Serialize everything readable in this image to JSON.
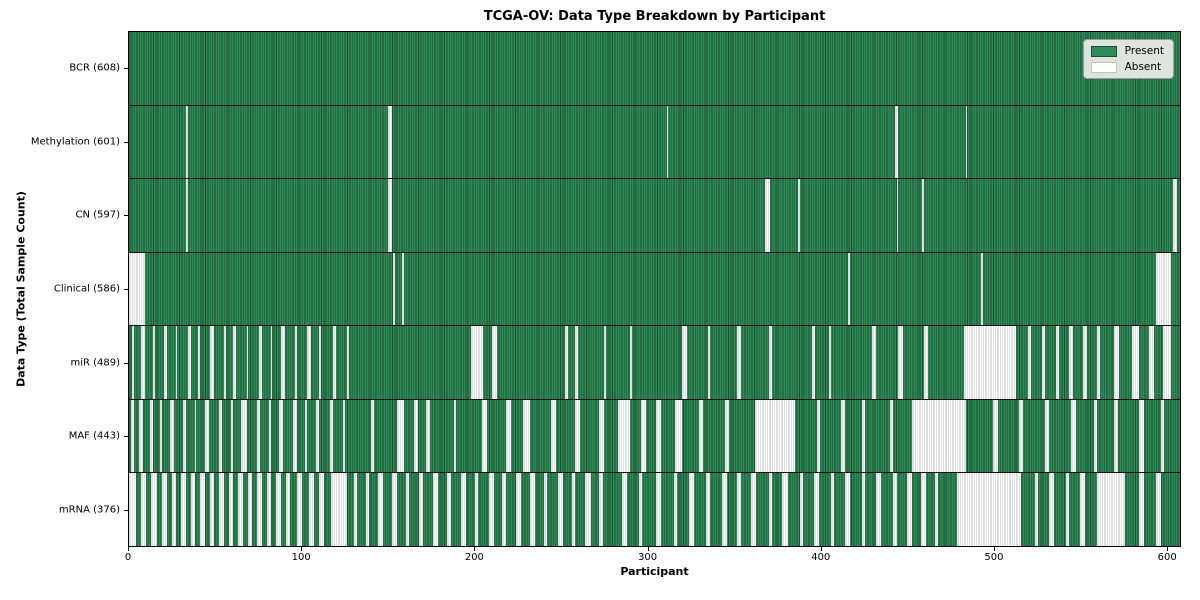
{
  "chart_data": {
    "type": "heatmap",
    "title": "TCGA-OV: Data Type Breakdown by Participant",
    "xlabel": "Participant",
    "ylabel": "Data Type (Total Sample Count)",
    "legend": [
      "Present",
      "Absent"
    ],
    "legend_position": "upper right",
    "grid": false,
    "n_participants": 608,
    "x_range": [
      0,
      608
    ],
    "x_ticks": [
      0,
      100,
      200,
      300,
      400,
      500,
      600
    ],
    "rows": [
      {
        "label": "BCR (608)",
        "present_count": 608,
        "absent_count": 0,
        "absent_ranges": []
      },
      {
        "label": "Methylation (601)",
        "present_count": 601,
        "absent_count": 7,
        "absent_ranges": [
          [
            33,
            33
          ],
          [
            150,
            151
          ],
          [
            311,
            311
          ],
          [
            443,
            444
          ],
          [
            484,
            484
          ]
        ]
      },
      {
        "label": "CN (597)",
        "present_count": 597,
        "absent_count": 11,
        "absent_ranges": [
          [
            33,
            33
          ],
          [
            150,
            151
          ],
          [
            368,
            370
          ],
          [
            387,
            387
          ],
          [
            444,
            444
          ],
          [
            459,
            459
          ],
          [
            604,
            605
          ]
        ]
      },
      {
        "label": "Clinical (586)",
        "present_count": 586,
        "absent_count": 22,
        "absent_ranges": [
          [
            0,
            8
          ],
          [
            153,
            153
          ],
          [
            158,
            158
          ],
          [
            416,
            416
          ],
          [
            493,
            493
          ],
          [
            594,
            602
          ]
        ]
      },
      {
        "label": "miR (489)",
        "present_count": 489,
        "absent_count": 119,
        "absent_ranges": [
          [
            2,
            2
          ],
          [
            7,
            8
          ],
          [
            14,
            14
          ],
          [
            20,
            21
          ],
          [
            27,
            27
          ],
          [
            34,
            35
          ],
          [
            40,
            40
          ],
          [
            47,
            48
          ],
          [
            55,
            55
          ],
          [
            60,
            61
          ],
          [
            68,
            68
          ],
          [
            75,
            76
          ],
          [
            82,
            82
          ],
          [
            88,
            89
          ],
          [
            96,
            96
          ],
          [
            103,
            104
          ],
          [
            110,
            110
          ],
          [
            118,
            119
          ],
          [
            126,
            126
          ],
          [
            198,
            204
          ],
          [
            210,
            212
          ],
          [
            252,
            253
          ],
          [
            258,
            259
          ],
          [
            275,
            275
          ],
          [
            290,
            290
          ],
          [
            320,
            322
          ],
          [
            335,
            335
          ],
          [
            352,
            353
          ],
          [
            370,
            371
          ],
          [
            395,
            396
          ],
          [
            405,
            405
          ],
          [
            430,
            431
          ],
          [
            445,
            447
          ],
          [
            460,
            461
          ],
          [
            483,
            512
          ],
          [
            520,
            521
          ],
          [
            528,
            529
          ],
          [
            536,
            537
          ],
          [
            544,
            545
          ],
          [
            552,
            553
          ],
          [
            560,
            561
          ],
          [
            570,
            572
          ],
          [
            580,
            583
          ],
          [
            590,
            592
          ],
          [
            598,
            602
          ]
        ]
      },
      {
        "label": "MAF (443)",
        "present_count": 443,
        "absent_count": 165,
        "absent_ranges": [
          [
            1,
            2
          ],
          [
            6,
            7
          ],
          [
            12,
            13
          ],
          [
            18,
            18
          ],
          [
            24,
            25
          ],
          [
            31,
            32
          ],
          [
            38,
            38
          ],
          [
            44,
            45
          ],
          [
            52,
            53
          ],
          [
            59,
            59
          ],
          [
            65,
            67
          ],
          [
            74,
            75
          ],
          [
            81,
            81
          ],
          [
            87,
            88
          ],
          [
            95,
            96
          ],
          [
            102,
            102
          ],
          [
            108,
            109
          ],
          [
            116,
            117
          ],
          [
            124,
            124
          ],
          [
            140,
            141
          ],
          [
            155,
            158
          ],
          [
            165,
            166
          ],
          [
            172,
            173
          ],
          [
            188,
            188
          ],
          [
            204,
            206
          ],
          [
            218,
            220
          ],
          [
            228,
            231
          ],
          [
            244,
            246
          ],
          [
            258,
            260
          ],
          [
            272,
            274
          ],
          [
            283,
            289
          ],
          [
            296,
            298
          ],
          [
            305,
            307
          ],
          [
            316,
            319
          ],
          [
            330,
            331
          ],
          [
            345,
            346
          ],
          [
            362,
            384
          ],
          [
            398,
            399
          ],
          [
            412,
            413
          ],
          [
            424,
            425
          ],
          [
            440,
            441
          ],
          [
            453,
            483
          ],
          [
            500,
            502
          ],
          [
            515,
            516
          ],
          [
            530,
            531
          ],
          [
            545,
            547
          ],
          [
            558,
            559
          ],
          [
            570,
            571
          ],
          [
            584,
            586
          ],
          [
            597,
            598
          ]
        ]
      },
      {
        "label": "mRNA (376)",
        "present_count": 376,
        "absent_count": 232,
        "absent_ranges": [
          [
            0,
            3
          ],
          [
            7,
            9
          ],
          [
            13,
            15
          ],
          [
            19,
            21
          ],
          [
            25,
            26
          ],
          [
            30,
            32
          ],
          [
            36,
            37
          ],
          [
            41,
            43
          ],
          [
            47,
            48
          ],
          [
            52,
            54
          ],
          [
            58,
            59
          ],
          [
            63,
            65
          ],
          [
            69,
            70
          ],
          [
            74,
            76
          ],
          [
            80,
            81
          ],
          [
            85,
            87
          ],
          [
            91,
            92
          ],
          [
            97,
            99
          ],
          [
            104,
            106
          ],
          [
            110,
            112
          ],
          [
            117,
            125
          ],
          [
            130,
            131
          ],
          [
            137,
            138
          ],
          [
            144,
            146
          ],
          [
            152,
            154
          ],
          [
            160,
            161
          ],
          [
            168,
            169
          ],
          [
            176,
            178
          ],
          [
            184,
            185
          ],
          [
            192,
            194
          ],
          [
            200,
            201
          ],
          [
            208,
            210
          ],
          [
            216,
            217
          ],
          [
            224,
            226
          ],
          [
            232,
            234
          ],
          [
            240,
            241
          ],
          [
            248,
            250
          ],
          [
            256,
            257
          ],
          [
            264,
            266
          ],
          [
            272,
            273
          ],
          [
            285,
            287
          ],
          [
            295,
            296
          ],
          [
            305,
            307
          ],
          [
            315,
            316
          ],
          [
            324,
            326
          ],
          [
            334,
            335
          ],
          [
            343,
            345
          ],
          [
            352,
            353
          ],
          [
            360,
            362
          ],
          [
            370,
            371
          ],
          [
            378,
            380
          ],
          [
            388,
            389
          ],
          [
            396,
            398
          ],
          [
            406,
            407
          ],
          [
            414,
            416
          ],
          [
            424,
            425
          ],
          [
            432,
            434
          ],
          [
            442,
            443
          ],
          [
            450,
            452
          ],
          [
            458,
            460
          ],
          [
            466,
            467
          ],
          [
            479,
            515
          ],
          [
            524,
            525
          ],
          [
            532,
            534
          ],
          [
            542,
            543
          ],
          [
            550,
            552
          ],
          [
            560,
            575
          ],
          [
            584,
            586
          ],
          [
            594,
            596
          ]
        ]
      }
    ]
  },
  "colors": {
    "present": "#2e8b57",
    "present_edge": "#1a4f33",
    "absent": "#ffffff",
    "absent_edge": "#c2c2c2",
    "row_separator": "#101010",
    "legend_bg": "#dfe4df"
  }
}
